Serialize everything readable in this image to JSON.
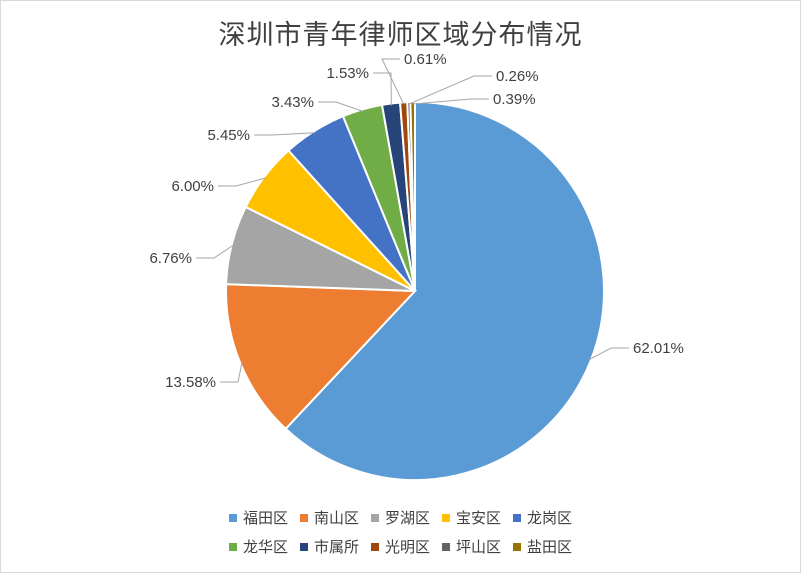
{
  "chart_data": {
    "type": "pie",
    "title": "深圳市青年律师区域分布情况",
    "start_angle_deg": 0,
    "direction": "clockwise",
    "slices": [
      {
        "label": "福田区",
        "value": 62.01,
        "value_label": "62.01%",
        "color": "#5b9bd5"
      },
      {
        "label": "南山区",
        "value": 13.58,
        "value_label": "13.58%",
        "color": "#ed7d31"
      },
      {
        "label": "罗湖区",
        "value": 6.76,
        "value_label": "6.76%",
        "color": "#a5a5a5"
      },
      {
        "label": "宝安区",
        "value": 6.0,
        "value_label": "6.00%",
        "color": "#ffc000"
      },
      {
        "label": "龙岗区",
        "value": 5.45,
        "value_label": "5.45%",
        "color": "#4472c4"
      },
      {
        "label": "龙华区",
        "value": 3.43,
        "value_label": "3.43%",
        "color": "#70ad47"
      },
      {
        "label": "市属所",
        "value": 1.53,
        "value_label": "1.53%",
        "color": "#264478"
      },
      {
        "label": "光明区",
        "value": 0.61,
        "value_label": "0.61%",
        "color": "#9e480e"
      },
      {
        "label": "坪山区",
        "value": 0.26,
        "value_label": "0.26%",
        "color": "#636363"
      },
      {
        "label": "盐田区",
        "value": 0.39,
        "value_label": "0.39%",
        "color": "#997300"
      }
    ],
    "legend_position": "bottom"
  }
}
